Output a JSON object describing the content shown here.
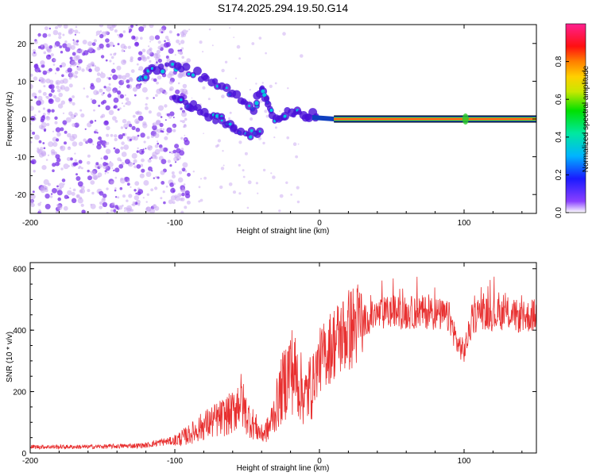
{
  "title": "S174.2025.294.19.50.G14",
  "colors": {
    "signal_line": "#e83030",
    "spectral_dot": "#7a30e8",
    "spectral_dot_faint": "#c9a8f2",
    "ridge_core": "#ff2a2a",
    "ridge_mid": "#2ad02a",
    "ridge_edge": "#1040c0"
  },
  "chart_data": [
    {
      "type": "heatmap",
      "title": "S174.2025.294.19.50.G14",
      "xlabel": "Height of straight line (km)",
      "ylabel": "Frequency (Hz)",
      "xlim": [
        -200,
        150
      ],
      "ylim": [
        -25,
        25
      ],
      "xticks": [
        -200,
        -100,
        0,
        100
      ],
      "yticks": [
        -20,
        -10,
        0,
        10,
        20
      ],
      "colorbar": {
        "label": "Normalized spectral amplitude",
        "ticks": [
          0.0,
          0.2,
          0.4,
          0.6,
          0.8
        ],
        "tick_labels": [
          "0.0",
          "0.2",
          "0.4",
          "0.6",
          "0.8"
        ],
        "range": [
          0,
          1
        ],
        "colormap": [
          "#ffffff",
          "#7a2cff",
          "#1a1aff",
          "#00c8ff",
          "#00e860",
          "#b8e800",
          "#ffd000",
          "#ff8000",
          "#ff1010",
          "#ff1a80"
        ]
      },
      "features": [
        {
          "name": "noise scatter",
          "x_range": [
            -200,
            -100
          ],
          "y_range": [
            -25,
            25
          ],
          "amplitude": 0.05
        },
        {
          "name": "descending track",
          "points": [
            [
              -125,
              11
            ],
            [
              -115,
              13
            ],
            [
              -100,
              14
            ],
            [
              -85,
              12
            ],
            [
              -70,
              9
            ],
            [
              -55,
              5
            ],
            [
              -45,
              3
            ],
            [
              -40,
              8
            ],
            [
              -35,
              3
            ],
            [
              -30,
              0
            ],
            [
              -20,
              2
            ],
            [
              -10,
              1
            ],
            [
              0,
              1
            ]
          ],
          "amplitude": 0.25
        },
        {
          "name": "lower track",
          "points": [
            [
              -100,
              5
            ],
            [
              -90,
              4
            ],
            [
              -80,
              2
            ],
            [
              -70,
              0
            ],
            [
              -60,
              -2
            ],
            [
              -50,
              -4
            ],
            [
              -40,
              -4
            ]
          ],
          "amplitude": 0.2
        },
        {
          "name": "carrier line",
          "x_range": [
            10,
            150
          ],
          "y": 0,
          "amplitude": 1.0
        }
      ]
    },
    {
      "type": "line",
      "xlabel": "Height of straight line (km)",
      "ylabel": "SNR (10 * v/v)",
      "xlim": [
        -200,
        150
      ],
      "ylim": [
        0,
        620
      ],
      "xticks": [
        -200,
        -100,
        0,
        100
      ],
      "yticks": [
        0,
        200,
        400,
        600
      ],
      "series": [
        {
          "name": "SNR",
          "x": [
            -200,
            -180,
            -160,
            -140,
            -120,
            -110,
            -100,
            -90,
            -80,
            -70,
            -60,
            -55,
            -50,
            -45,
            -40,
            -35,
            -30,
            -25,
            -20,
            -15,
            -10,
            -5,
            0,
            10,
            20,
            30,
            40,
            50,
            60,
            70,
            80,
            90,
            95,
            100,
            105,
            110,
            120,
            130,
            140,
            150
          ],
          "values": [
            20,
            20,
            20,
            22,
            25,
            35,
            40,
            60,
            90,
            110,
            130,
            180,
            120,
            90,
            60,
            80,
            150,
            220,
            280,
            240,
            180,
            230,
            300,
            360,
            400,
            430,
            450,
            460,
            455,
            460,
            455,
            440,
            360,
            330,
            420,
            460,
            450,
            455,
            440,
            450
          ]
        }
      ]
    }
  ]
}
